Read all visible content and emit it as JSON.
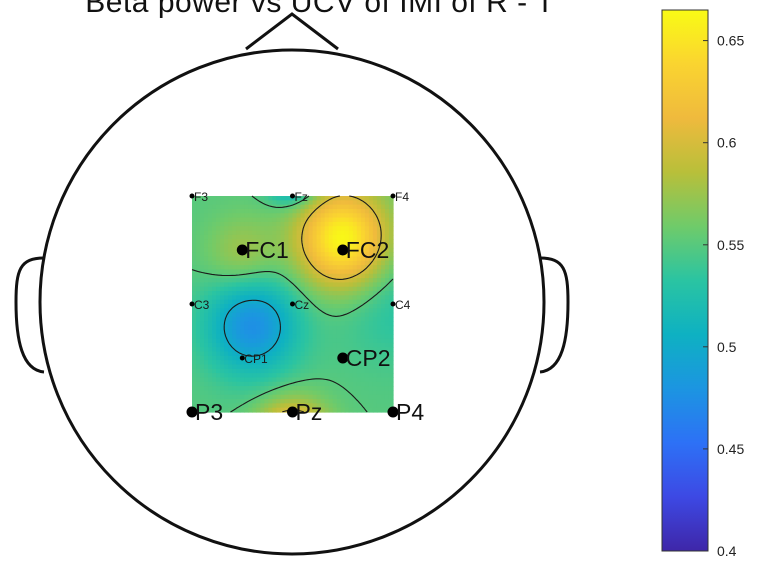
{
  "chart_data": {
    "type": "heatmap",
    "title": "Beta power vs UCV of IMI of R - T",
    "colorbar": {
      "ticks": [
        0.4,
        0.45,
        0.5,
        0.55,
        0.6,
        0.65
      ],
      "tick_labels": [
        "0.4",
        "0.45",
        "0.5",
        "0.55",
        "0.6",
        "0.65"
      ],
      "clim": [
        0.4,
        0.665
      ],
      "colormap": [
        "#3e26a8",
        "#3d49e4",
        "#2d71f6",
        "#1c95e1",
        "#0eb1c2",
        "#2ac4a2",
        "#6fcb6a",
        "#b8bf3a",
        "#efba3d",
        "#fad430",
        "#f9fb15"
      ]
    },
    "electrodes": [
      {
        "name": "F3",
        "x": -1,
        "y": 1,
        "labeled_large": false
      },
      {
        "name": "Fz",
        "x": 0,
        "y": 1,
        "labeled_large": false
      },
      {
        "name": "F4",
        "x": 1,
        "y": 1,
        "labeled_large": false
      },
      {
        "name": "FC1",
        "x": -0.5,
        "y": 0.5,
        "labeled_large": true
      },
      {
        "name": "FC2",
        "x": 0.5,
        "y": 0.5,
        "labeled_large": true
      },
      {
        "name": "C3",
        "x": -1,
        "y": 0,
        "labeled_large": false
      },
      {
        "name": "Cz",
        "x": 0,
        "y": 0,
        "labeled_large": false
      },
      {
        "name": "C4",
        "x": 1,
        "y": 0,
        "labeled_large": false
      },
      {
        "name": "CP1",
        "x": -0.5,
        "y": -0.5,
        "labeled_large": false
      },
      {
        "name": "CP2",
        "x": 0.5,
        "y": -0.5,
        "labeled_large": true
      },
      {
        "name": "P3",
        "x": -1,
        "y": -1,
        "labeled_large": true
      },
      {
        "name": "Pz",
        "x": 0,
        "y": -1,
        "labeled_large": true
      },
      {
        "name": "P4",
        "x": 1,
        "y": -1,
        "labeled_large": true
      }
    ],
    "field_components": {
      "baseline": 0.55,
      "peaks": [
        {
          "x": 0.5,
          "y": 0.6,
          "amplitude": 0.115,
          "spread": 0.2
        },
        {
          "x": -0.4,
          "y": -0.2,
          "amplitude": -0.075,
          "spread": 0.2
        },
        {
          "x": 0,
          "y": 1.25,
          "amplitude": -0.13,
          "spread": 0.06
        },
        {
          "x": 0,
          "y": -1.3,
          "amplitude": 0.12,
          "spread": 0.12
        },
        {
          "x": -0.5,
          "y": 0.45,
          "amplitude": 0.03,
          "spread": 0.12
        },
        {
          "x": 1,
          "y": 0,
          "amplitude": -0.02,
          "spread": 0.3
        }
      ]
    },
    "contour_levels": [
      0.45,
      0.5,
      0.55,
      0.6
    ]
  }
}
